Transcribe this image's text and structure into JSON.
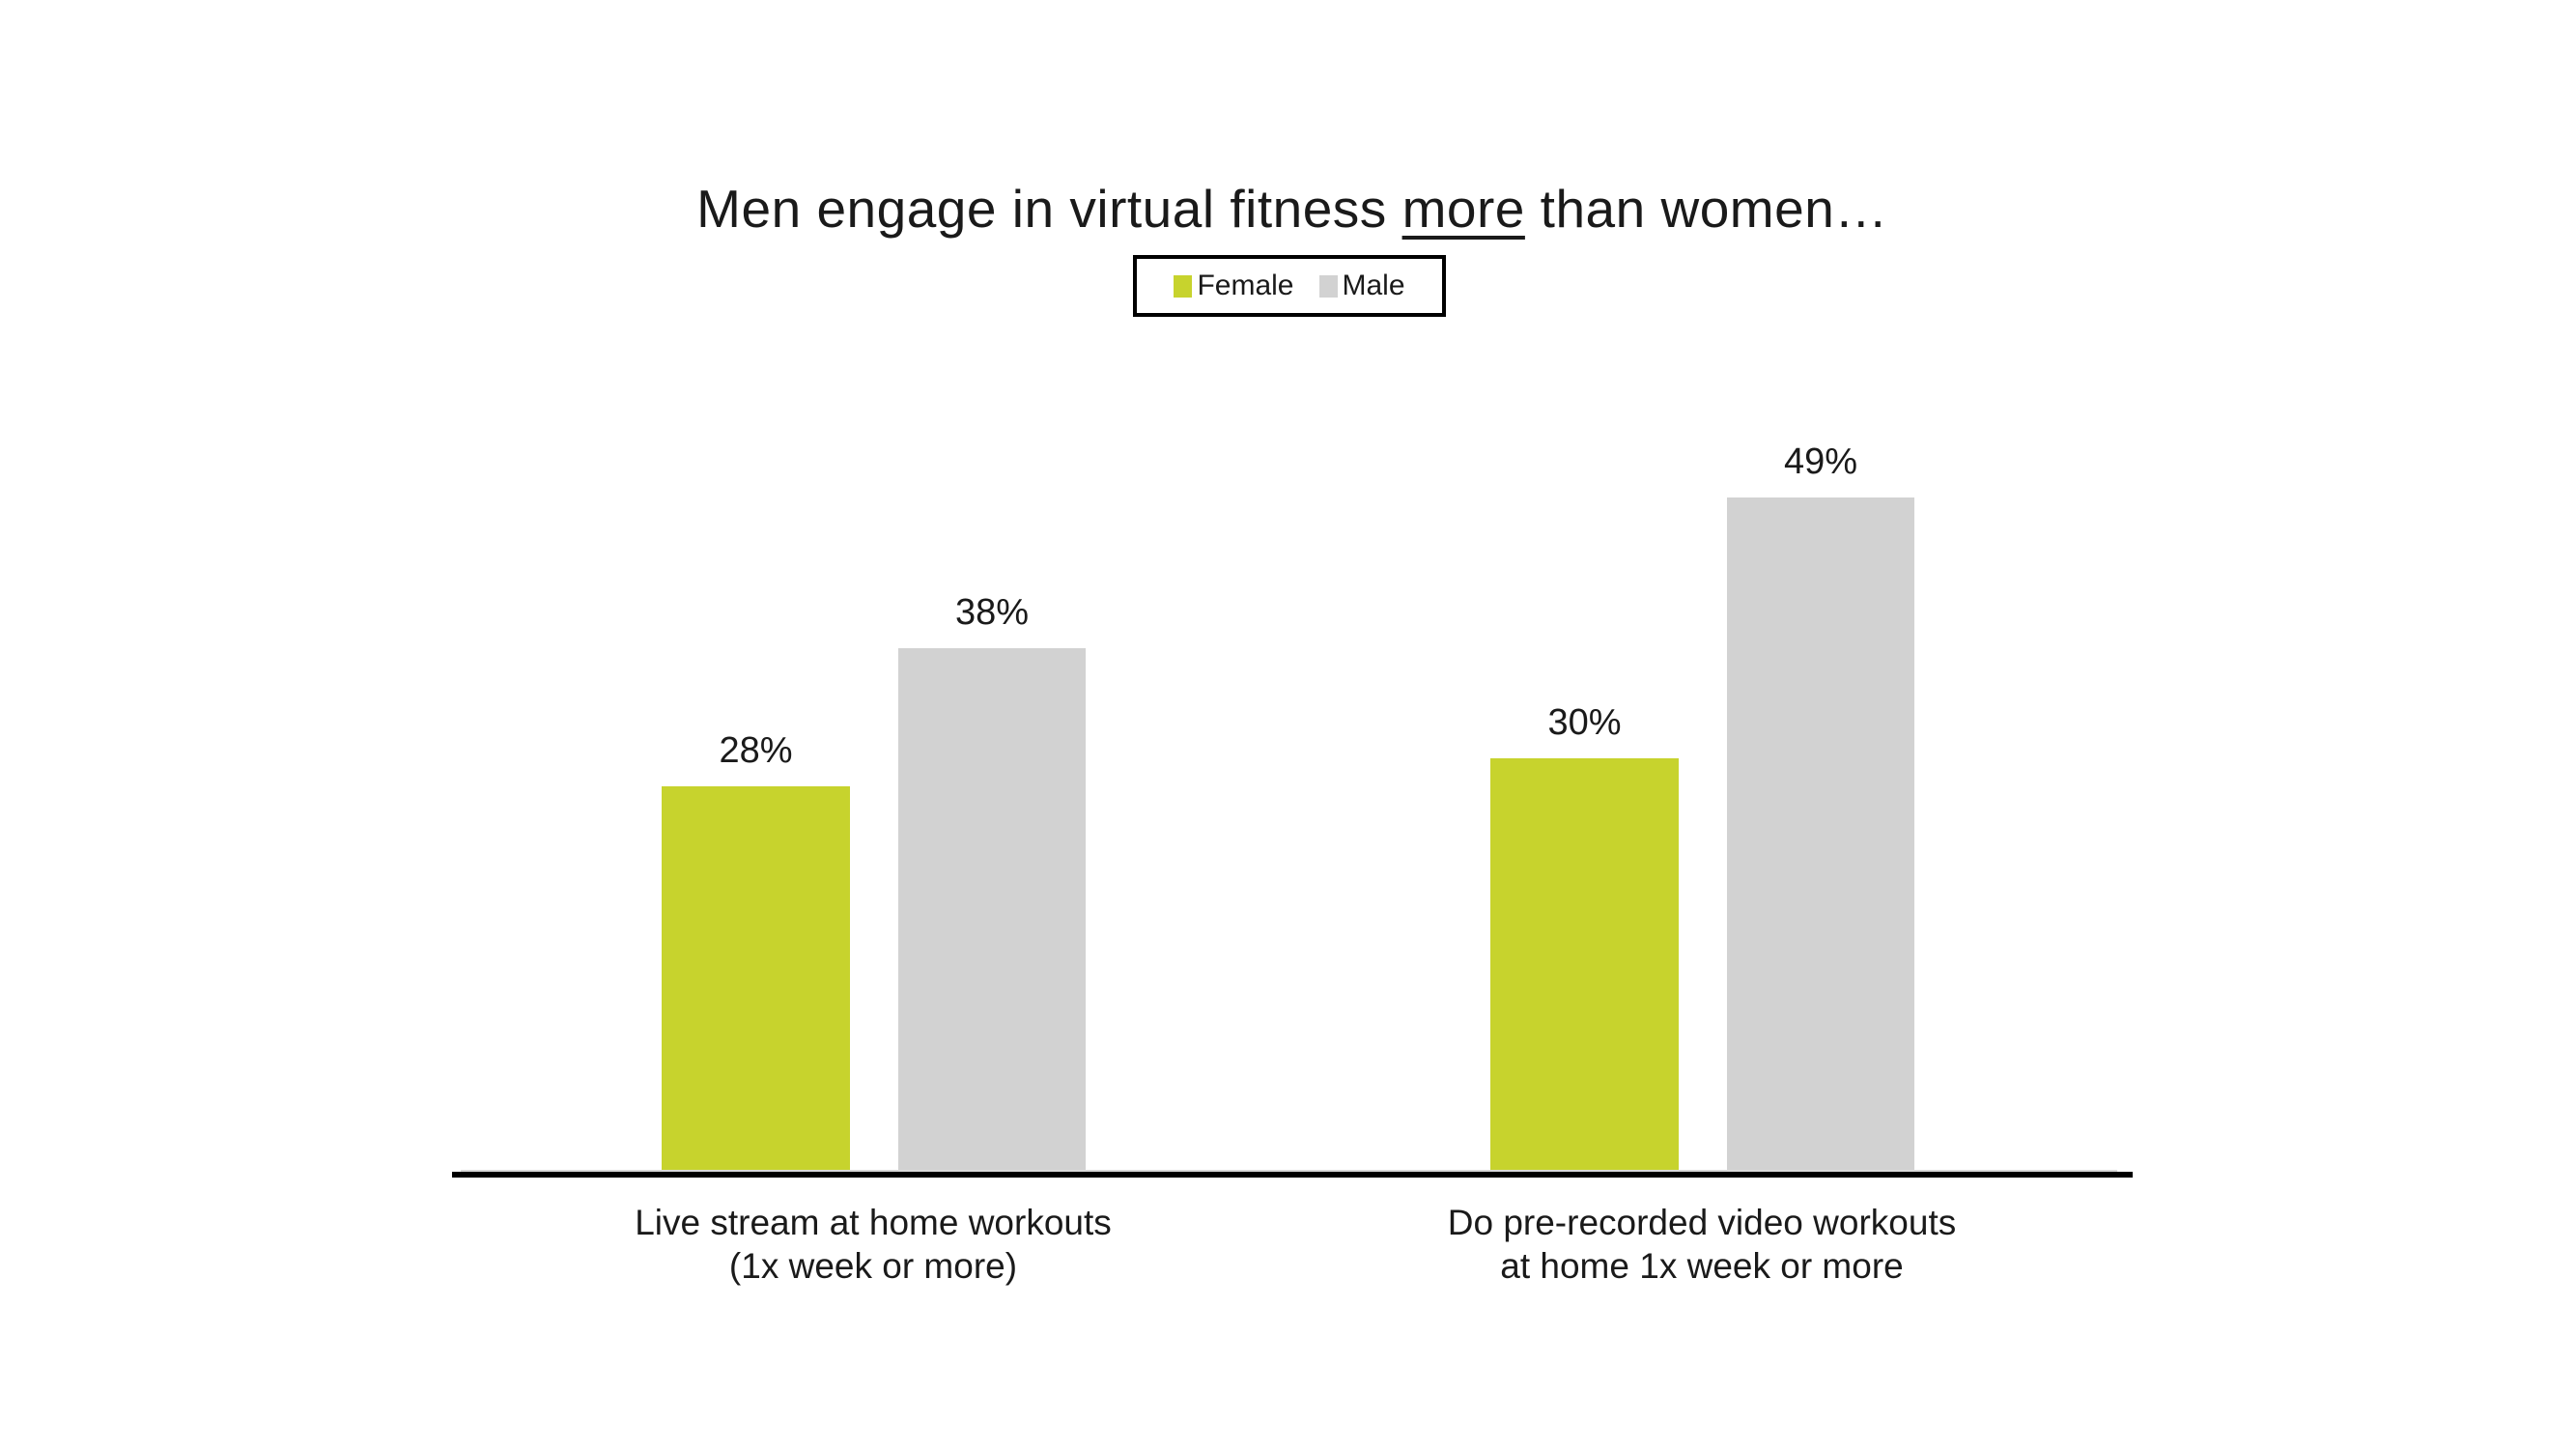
{
  "title": {
    "prefix": "Men engage in virtual fitness ",
    "underlined": "more",
    "suffix": " than women…"
  },
  "colors": {
    "female": "#C7D32D",
    "male": "#D2D2D2",
    "axis": "#000000",
    "text": "#1A1A1A",
    "background": "#FFFFFF"
  },
  "chart_data": {
    "type": "bar",
    "title": "Men engage in virtual fitness more than women…",
    "categories": [
      "Live stream at home workouts (1x week or more)",
      "Do pre-recorded video workouts at home 1x week or more"
    ],
    "categories_display": [
      {
        "line1": "Live stream at home workouts",
        "line2": "(1x week or more)"
      },
      {
        "line1": "Do pre-recorded video workouts",
        "line2": "at home 1x week or more"
      }
    ],
    "series": [
      {
        "name": "Female",
        "color": "#C7D32D",
        "values": [
          28,
          30
        ]
      },
      {
        "name": "Male",
        "color": "#D2D2D2",
        "values": [
          38,
          49
        ]
      }
    ],
    "value_labels": [
      [
        "28%",
        "38%"
      ],
      [
        "30%",
        "49%"
      ]
    ],
    "unit": "%",
    "ylim": [
      0,
      52
    ],
    "grid": false,
    "value_labels_shown": true,
    "legend_position": "top-center",
    "xlabel": "",
    "ylabel": ""
  }
}
